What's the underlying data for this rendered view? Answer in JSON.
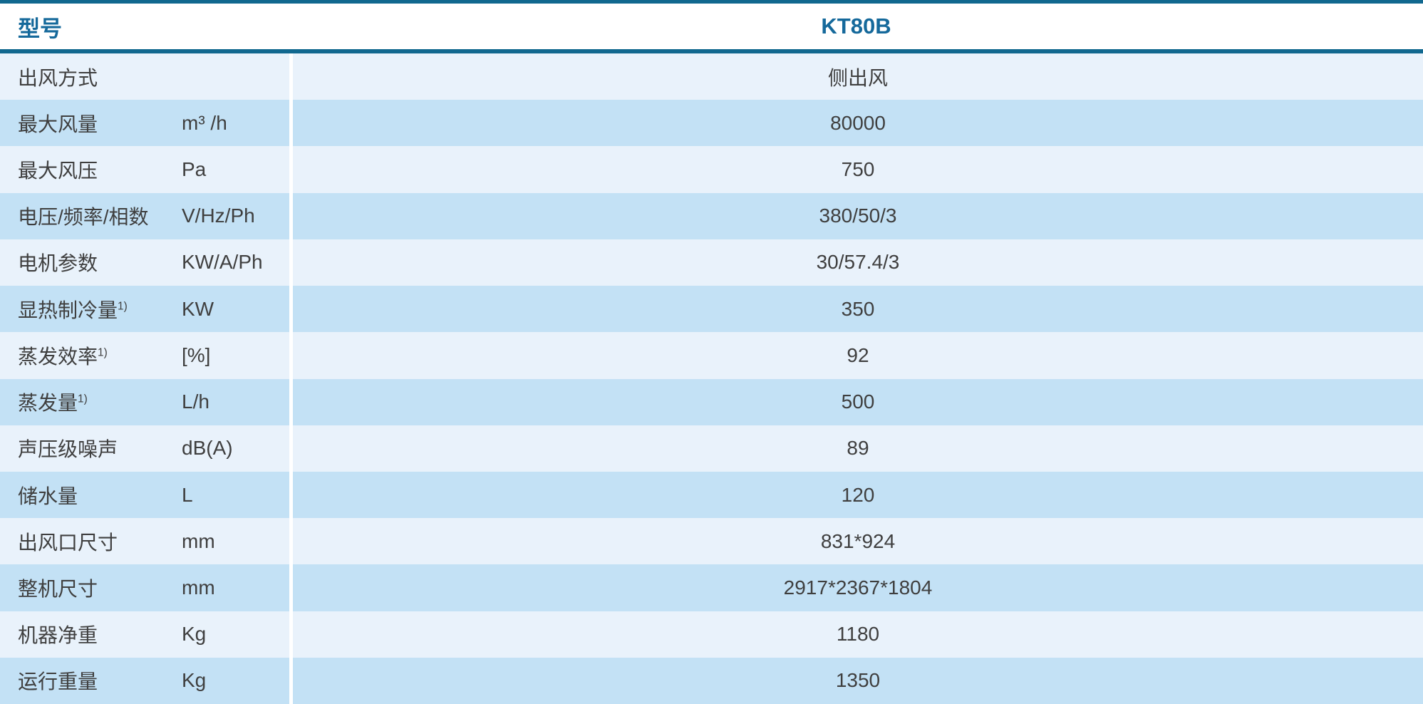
{
  "colors": {
    "accent": "#11688f",
    "header_text": "#15699b",
    "row_light": "#e9f2fb",
    "row_dark": "#c3e1f5",
    "text": "#3f3f3f"
  },
  "header": {
    "model_label": "型号",
    "model_value": "KT80B"
  },
  "table": {
    "rows": [
      {
        "label": "出风方式",
        "sup": "",
        "unit": "",
        "value": "侧出风"
      },
      {
        "label": "最大风量",
        "sup": "",
        "unit": "m³ /h",
        "value": "80000"
      },
      {
        "label": "最大风压",
        "sup": "",
        "unit": "Pa",
        "value": "750"
      },
      {
        "label": "电压/频率/相数",
        "sup": "",
        "unit": "V/Hz/Ph",
        "value": "380/50/3"
      },
      {
        "label": "电机参数",
        "sup": "",
        "unit": "KW/A/Ph",
        "value": "30/57.4/3"
      },
      {
        "label": "显热制冷量",
        "sup": "1)",
        "unit": "KW",
        "value": "350"
      },
      {
        "label": "蒸发效率",
        "sup": "1)",
        "unit": "[%]",
        "value": "92"
      },
      {
        "label": "蒸发量",
        "sup": "1)",
        "unit": "L/h",
        "value": "500"
      },
      {
        "label": "声压级噪声",
        "sup": "",
        "unit": "dB(A)",
        "value": "89"
      },
      {
        "label": "储水量",
        "sup": "",
        "unit": "L",
        "value": "120"
      },
      {
        "label": "出风口尺寸",
        "sup": "",
        "unit": "mm",
        "value": "831*924"
      },
      {
        "label": "整机尺寸",
        "sup": "",
        "unit": "mm",
        "value": "2917*2367*1804"
      },
      {
        "label": "机器净重",
        "sup": "",
        "unit": "Kg",
        "value": "1180"
      },
      {
        "label": "运行重量",
        "sup": "",
        "unit": "Kg",
        "value": "1350"
      }
    ]
  }
}
